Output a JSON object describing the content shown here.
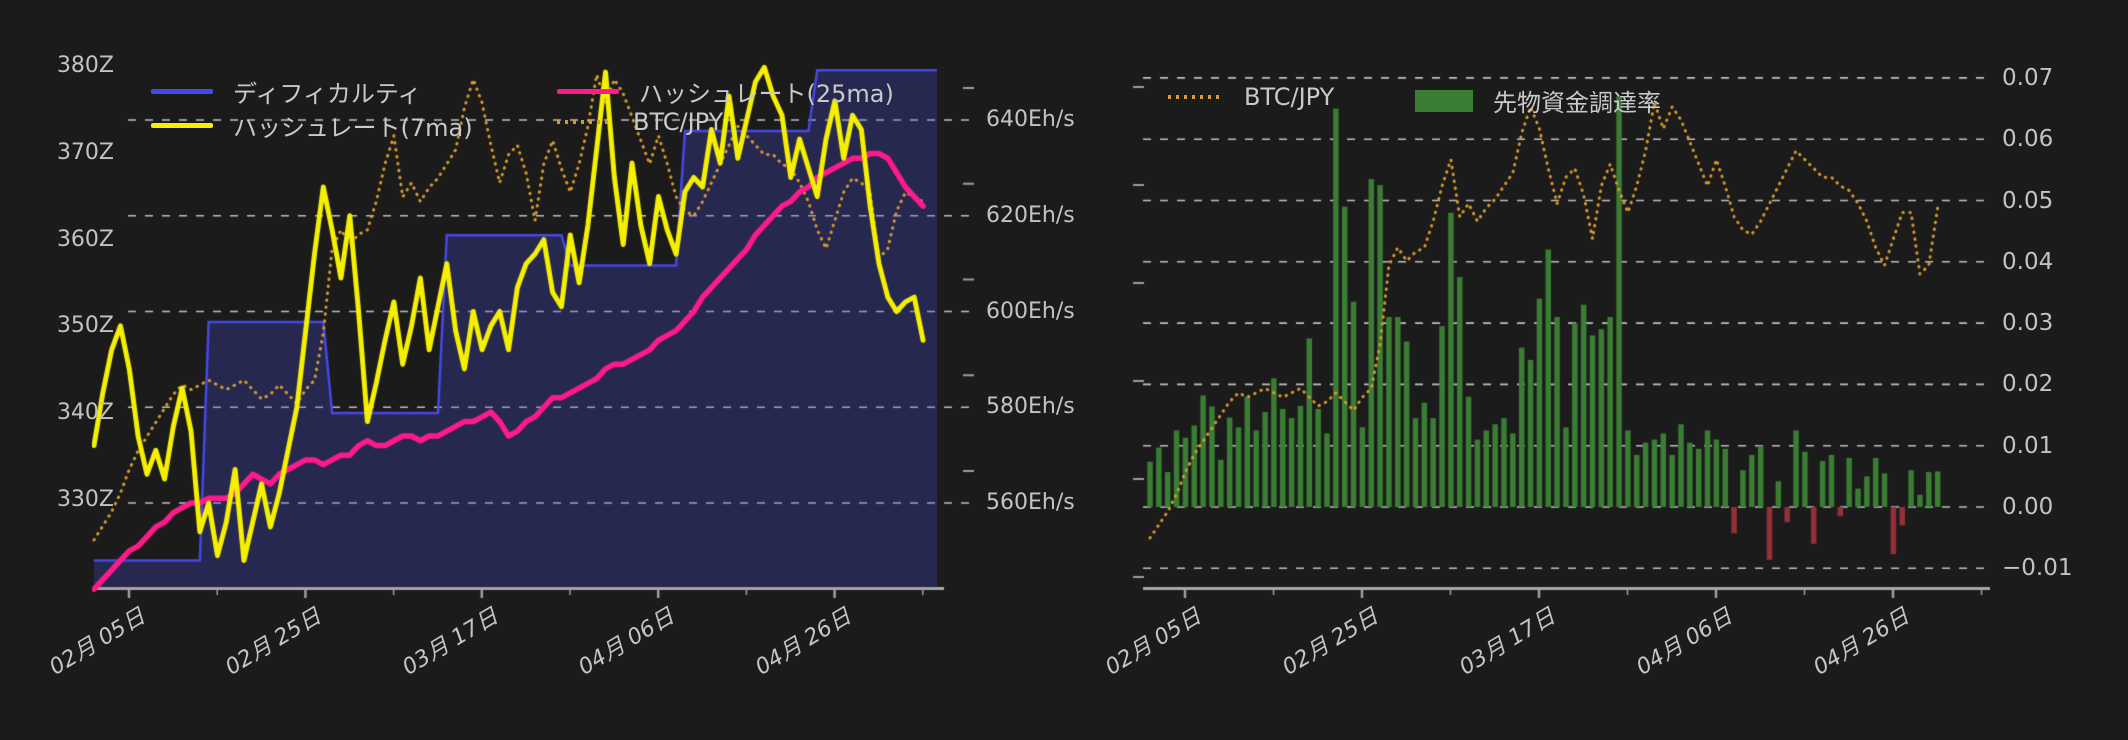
{
  "page": {
    "background": "#1b1b1b",
    "text_color": "#c6c6c6"
  },
  "chart_data": [
    {
      "id": "hashrate-difficulty-chart",
      "type": "line",
      "title": "",
      "x_tick_labels": [
        "02月 05日",
        "02月 25日",
        "03月 17日",
        "04月 06日",
        "04月 26日"
      ],
      "x_range": {
        "start": "02月01日",
        "end": "05月06日",
        "points": 95,
        "interval": "daily"
      },
      "y_axis_left": {
        "tick_labels": [
          "380Z",
          "370Z",
          "360Z",
          "350Z",
          "340Z",
          "330Z"
        ],
        "unit": "Z"
      },
      "y_axis_right": {
        "tick_labels": [
          "640Eh/s",
          "620Eh/s",
          "600Eh/s",
          "580Eh/s",
          "560Eh/s"
        ],
        "unit": "Eh/s",
        "range": [
          542,
          650
        ]
      },
      "grid": "dashed horizontal on right-axis ticks",
      "legend_position": "top inside, two rows",
      "legend": [
        {
          "label": "ディフィカルティ",
          "color": "#4649e8",
          "style": "solid-line"
        },
        {
          "label": "ハッシュレート(25ma)",
          "color": "#ff1a8c",
          "style": "solid-line"
        },
        {
          "label": "ハッシュレート(7ma)",
          "color": "#f5ef00",
          "style": "solid-line"
        },
        {
          "label": "BTC/JPY",
          "color": "#d79a2e",
          "style": "dotted-line"
        }
      ],
      "series": [
        {
          "name": "ディフィカルティ",
          "axis": "left",
          "unit": "Z",
          "type": "step-area",
          "line_color": "#4649e8",
          "fill_color": "rgba(72,74,217,0.28)",
          "steps": [
            {
              "day": 0,
              "value": 323
            },
            {
              "day": 13,
              "value": 350.5
            },
            {
              "day": 27,
              "value": 340
            },
            {
              "day": 40,
              "value": 360.5
            },
            {
              "day": 54,
              "value": 357
            },
            {
              "day": 67,
              "value": 372.5
            },
            {
              "day": 82,
              "value": 379.5
            }
          ]
        },
        {
          "name": "ハッシュレート(7ma)",
          "axis": "right",
          "unit": "Eh/s",
          "type": "line",
          "color": "#f5ef00",
          "values": [
            572,
            583,
            592,
            597,
            588,
            574,
            566,
            571,
            565,
            576,
            584,
            575,
            554,
            560,
            549,
            556,
            567,
            548,
            556,
            564,
            555,
            562,
            571,
            580,
            596,
            612,
            626,
            617,
            607,
            620,
            600,
            577,
            585,
            594,
            602,
            589,
            597,
            607,
            592,
            601,
            610,
            596,
            588,
            600,
            592,
            597,
            600,
            592,
            605,
            610,
            612,
            615,
            604,
            601,
            616,
            606,
            618,
            634,
            650,
            628,
            614,
            631,
            618,
            610,
            624,
            617,
            612,
            625,
            628,
            626,
            638,
            631,
            645,
            632,
            640,
            648,
            651,
            645,
            641,
            628,
            636,
            630,
            624,
            636,
            644,
            632,
            641,
            638,
            622,
            610,
            603,
            600,
            602,
            603,
            594
          ]
        },
        {
          "name": "ハッシュレート(25ma)",
          "axis": "right",
          "unit": "Eh/s",
          "type": "line",
          "color": "#ff1a8c",
          "values": [
            542,
            544,
            546,
            548,
            550,
            551,
            553,
            555,
            556,
            558,
            559,
            560,
            560,
            561,
            561,
            561,
            562,
            564,
            566,
            565,
            564,
            566,
            567,
            568,
            569,
            569,
            568,
            569,
            570,
            570,
            572,
            573,
            572,
            572,
            573,
            574,
            574,
            573,
            574,
            574,
            575,
            576,
            577,
            577,
            578,
            579,
            577,
            574,
            575,
            577,
            578,
            580,
            582,
            582,
            583,
            584,
            585,
            586,
            588,
            589,
            589,
            590,
            591,
            592,
            594,
            595,
            596,
            598,
            600,
            603,
            605,
            607,
            609,
            611,
            613,
            616,
            618,
            620,
            622,
            623,
            625,
            626,
            628,
            629,
            630,
            631,
            632,
            632,
            633,
            633,
            632,
            629,
            626,
            624,
            622
          ]
        },
        {
          "name": "BTC/JPY",
          "axis": "hidden",
          "unit": "normalized 0-1 (no visible scale)",
          "type": "dotted-line",
          "color": "#d79a2e",
          "values": [
            0.0,
            0.03,
            0.06,
            0.1,
            0.15,
            0.19,
            0.22,
            0.25,
            0.28,
            0.31,
            0.33,
            0.32,
            0.33,
            0.34,
            0.33,
            0.32,
            0.33,
            0.34,
            0.32,
            0.3,
            0.31,
            0.33,
            0.31,
            0.29,
            0.32,
            0.34,
            0.44,
            0.62,
            0.66,
            0.63,
            0.65,
            0.66,
            0.72,
            0.8,
            0.86,
            0.73,
            0.76,
            0.72,
            0.75,
            0.77,
            0.8,
            0.83,
            0.92,
            0.98,
            0.93,
            0.84,
            0.76,
            0.82,
            0.84,
            0.78,
            0.68,
            0.8,
            0.85,
            0.79,
            0.74,
            0.8,
            0.88,
            0.99,
            0.93,
            0.98,
            0.95,
            0.9,
            0.85,
            0.8,
            0.86,
            0.8,
            0.73,
            0.7,
            0.69,
            0.72,
            0.76,
            0.8,
            0.84,
            0.88,
            0.86,
            0.84,
            0.82,
            0.82,
            0.8,
            0.79,
            0.76,
            0.72,
            0.66,
            0.62,
            0.68,
            0.74,
            0.77,
            0.76,
            0.74,
            0.6,
            0.62,
            0.7,
            0.74,
            0.73,
            0.72
          ]
        }
      ]
    },
    {
      "id": "funding-rate-chart",
      "type": "bar",
      "title": "",
      "x_tick_labels": [
        "02月 05日",
        "02月 25日",
        "03月 17日",
        "04月 06日",
        "04月 26日"
      ],
      "x_range": {
        "start": "02月01日",
        "end": "05月01日",
        "points": 90,
        "interval": "daily"
      },
      "y_axis_right": {
        "tick_labels": [
          "0.07",
          "0.06",
          "0.05",
          "0.04",
          "0.03",
          "0.02",
          "0.01",
          "0.00",
          "−0.01"
        ],
        "range": [
          -0.013,
          0.072
        ]
      },
      "grid": "dashed horizontal on right-axis ticks",
      "legend_position": "top inside, one row",
      "legend": [
        {
          "label": "BTC/JPY",
          "color": "#d79a2e",
          "style": "dotted-line"
        },
        {
          "label": "先物資金調達率",
          "color": "#3a7d33",
          "style": "filled-box"
        }
      ],
      "series": [
        {
          "name": "先物資金調達率",
          "axis": "right",
          "type": "bar",
          "color_positive": "#3a7d33",
          "color_negative": "#943038",
          "values": [
            0.0074,
            0.0097,
            0.0057,
            0.0125,
            0.0113,
            0.0133,
            0.0182,
            0.0164,
            0.0077,
            0.0146,
            0.013,
            0.018,
            0.0125,
            0.0155,
            0.021,
            0.016,
            0.0145,
            0.0165,
            0.0275,
            0.016,
            0.012,
            0.065,
            0.049,
            0.0335,
            0.013,
            0.0535,
            0.0525,
            0.031,
            0.031,
            0.027,
            0.0145,
            0.017,
            0.0145,
            0.0295,
            0.048,
            0.0375,
            0.018,
            0.011,
            0.0125,
            0.0135,
            0.0145,
            0.012,
            0.026,
            0.024,
            0.034,
            0.042,
            0.031,
            0.013,
            0.03,
            0.033,
            0.028,
            0.029,
            0.031,
            0.067,
            0.0125,
            0.0085,
            0.0105,
            0.011,
            0.012,
            0.0085,
            0.0135,
            0.0105,
            0.0095,
            0.0125,
            0.011,
            0.0095,
            -0.0043,
            0.006,
            0.0085,
            0.01,
            -0.0086,
            0.0042,
            -0.0025,
            0.0125,
            0.009,
            -0.006,
            0.0075,
            0.0085,
            -0.0015,
            0.008,
            0.003,
            0.005,
            0.008,
            0.0055,
            -0.0077,
            -0.003,
            0.006,
            0.002,
            0.0057,
            0.0058
          ]
        },
        {
          "name": "BTC/JPY",
          "axis": "hidden",
          "unit": "normalized 0-1 (no visible scale)",
          "type": "dotted-line",
          "color": "#d79a2e",
          "values": [
            0.0,
            0.03,
            0.06,
            0.1,
            0.15,
            0.19,
            0.22,
            0.25,
            0.28,
            0.31,
            0.33,
            0.32,
            0.33,
            0.34,
            0.33,
            0.32,
            0.33,
            0.34,
            0.32,
            0.3,
            0.31,
            0.33,
            0.31,
            0.29,
            0.32,
            0.34,
            0.44,
            0.62,
            0.66,
            0.63,
            0.65,
            0.66,
            0.72,
            0.8,
            0.86,
            0.73,
            0.76,
            0.72,
            0.75,
            0.77,
            0.8,
            0.83,
            0.92,
            0.98,
            0.93,
            0.84,
            0.76,
            0.82,
            0.84,
            0.78,
            0.68,
            0.8,
            0.85,
            0.79,
            0.74,
            0.8,
            0.88,
            0.99,
            0.93,
            0.98,
            0.95,
            0.9,
            0.85,
            0.8,
            0.86,
            0.8,
            0.73,
            0.7,
            0.69,
            0.72,
            0.76,
            0.8,
            0.84,
            0.88,
            0.86,
            0.84,
            0.82,
            0.82,
            0.8,
            0.79,
            0.76,
            0.72,
            0.66,
            0.62,
            0.68,
            0.74,
            0.74,
            0.6,
            0.62,
            0.75
          ]
        }
      ]
    }
  ]
}
